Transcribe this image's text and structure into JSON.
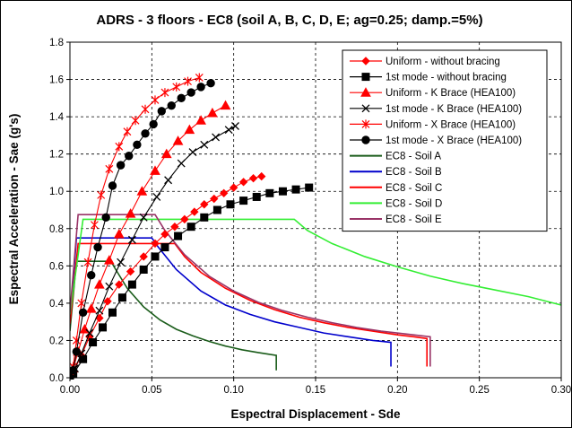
{
  "chart_data": {
    "type": "line",
    "title": "ADRS - 3 floors - EC8 (soil A, B, C, D, E; ag=0.25; damp.=5%)",
    "xlabel": "Espectral Displacement - Sde",
    "ylabel": "Espectral Acceleration - Sae (g's)",
    "xlim": [
      0,
      0.3
    ],
    "ylim": [
      0,
      1.8
    ],
    "xticks": [
      "0.00",
      "0.05",
      "0.10",
      "0.15",
      "0.20",
      "0.25",
      "0.30"
    ],
    "yticks": [
      "0.0",
      "0.2",
      "0.4",
      "0.6",
      "0.8",
      "1.0",
      "1.2",
      "1.4",
      "1.6",
      "1.8"
    ],
    "grid": "dashed",
    "legend_position": "top-right",
    "series": [
      {
        "name": "Uniform - without bracing",
        "color": "#ff0000",
        "marker": "diamond",
        "points": [
          [
            0,
            0
          ],
          [
            0.002,
            0.03
          ],
          [
            0.007,
            0.12
          ],
          [
            0.012,
            0.22
          ],
          [
            0.018,
            0.32
          ],
          [
            0.023,
            0.41
          ],
          [
            0.03,
            0.5
          ],
          [
            0.037,
            0.57
          ],
          [
            0.045,
            0.65
          ],
          [
            0.052,
            0.72
          ],
          [
            0.058,
            0.77
          ],
          [
            0.064,
            0.81
          ],
          [
            0.07,
            0.85
          ],
          [
            0.076,
            0.89
          ],
          [
            0.082,
            0.93
          ],
          [
            0.088,
            0.96
          ],
          [
            0.094,
            0.99
          ],
          [
            0.1,
            1.02
          ],
          [
            0.106,
            1.05
          ],
          [
            0.112,
            1.07
          ],
          [
            0.117,
            1.08
          ]
        ]
      },
      {
        "name": "1st mode - without bracing",
        "color": "#000000",
        "marker": "square",
        "points": [
          [
            0,
            0
          ],
          [
            0.002,
            0.02
          ],
          [
            0.008,
            0.1
          ],
          [
            0.014,
            0.19
          ],
          [
            0.02,
            0.27
          ],
          [
            0.026,
            0.35
          ],
          [
            0.032,
            0.43
          ],
          [
            0.038,
            0.5
          ],
          [
            0.045,
            0.58
          ],
          [
            0.052,
            0.65
          ],
          [
            0.058,
            0.7
          ],
          [
            0.066,
            0.76
          ],
          [
            0.074,
            0.81
          ],
          [
            0.082,
            0.86
          ],
          [
            0.09,
            0.9
          ],
          [
            0.098,
            0.93
          ],
          [
            0.106,
            0.95
          ],
          [
            0.114,
            0.97
          ],
          [
            0.122,
            0.99
          ],
          [
            0.13,
            1.0
          ],
          [
            0.138,
            1.01
          ],
          [
            0.146,
            1.02
          ]
        ]
      },
      {
        "name": "Uniform - K Brace (HEA100)",
        "color": "#ff0000",
        "marker": "triangle",
        "points": [
          [
            0,
            0
          ],
          [
            0.002,
            0.05
          ],
          [
            0.005,
            0.14
          ],
          [
            0.009,
            0.26
          ],
          [
            0.013,
            0.37
          ],
          [
            0.018,
            0.5
          ],
          [
            0.024,
            0.63
          ],
          [
            0.03,
            0.77
          ],
          [
            0.037,
            0.88
          ],
          [
            0.044,
            1.0
          ],
          [
            0.052,
            1.11
          ],
          [
            0.059,
            1.2
          ],
          [
            0.066,
            1.27
          ],
          [
            0.073,
            1.33
          ],
          [
            0.08,
            1.38
          ],
          [
            0.087,
            1.42
          ],
          [
            0.095,
            1.46
          ]
        ]
      },
      {
        "name": "1st mode - K Brace (HEA100)",
        "color": "#000000",
        "marker": "x",
        "points": [
          [
            0,
            0
          ],
          [
            0.003,
            0.05
          ],
          [
            0.007,
            0.13
          ],
          [
            0.012,
            0.24
          ],
          [
            0.018,
            0.36
          ],
          [
            0.024,
            0.49
          ],
          [
            0.031,
            0.62
          ],
          [
            0.038,
            0.74
          ],
          [
            0.045,
            0.86
          ],
          [
            0.053,
            0.97
          ],
          [
            0.06,
            1.06
          ],
          [
            0.068,
            1.15
          ],
          [
            0.075,
            1.21
          ],
          [
            0.082,
            1.25
          ],
          [
            0.089,
            1.29
          ],
          [
            0.097,
            1.33
          ],
          [
            0.101,
            1.35
          ]
        ]
      },
      {
        "name": "Uniform - X Brace (HEA100)",
        "color": "#ff0000",
        "marker": "star",
        "points": [
          [
            0,
            0
          ],
          [
            0.002,
            0.06
          ],
          [
            0.004,
            0.2
          ],
          [
            0.007,
            0.4
          ],
          [
            0.011,
            0.62
          ],
          [
            0.015,
            0.82
          ],
          [
            0.019,
            0.98
          ],
          [
            0.024,
            1.12
          ],
          [
            0.03,
            1.24
          ],
          [
            0.035,
            1.32
          ],
          [
            0.04,
            1.38
          ],
          [
            0.046,
            1.44
          ],
          [
            0.052,
            1.49
          ],
          [
            0.058,
            1.53
          ],
          [
            0.065,
            1.56
          ],
          [
            0.072,
            1.59
          ],
          [
            0.079,
            1.61
          ]
        ]
      },
      {
        "name": "1st mode - X Brace (HEA100)",
        "color": "#000000",
        "marker": "circle",
        "points": [
          [
            0,
            0
          ],
          [
            0.002,
            0.04
          ],
          [
            0.004,
            0.14
          ],
          [
            0.008,
            0.35
          ],
          [
            0.013,
            0.55
          ],
          [
            0.017,
            0.7
          ],
          [
            0.022,
            0.86
          ],
          [
            0.026,
            1.03
          ],
          [
            0.031,
            1.14
          ],
          [
            0.036,
            1.19
          ],
          [
            0.041,
            1.25
          ],
          [
            0.046,
            1.31
          ],
          [
            0.051,
            1.36
          ],
          [
            0.056,
            1.43
          ],
          [
            0.062,
            1.46
          ],
          [
            0.068,
            1.5
          ],
          [
            0.074,
            1.53
          ],
          [
            0.08,
            1.56
          ],
          [
            0.086,
            1.58
          ]
        ]
      },
      {
        "name": "EC8 - Soil A",
        "color": "#1a5c1a",
        "marker": "none",
        "points": [
          [
            0,
            0.25
          ],
          [
            0.004,
            0.625
          ],
          [
            0.025,
            0.625
          ],
          [
            0.028,
            0.58
          ],
          [
            0.035,
            0.48
          ],
          [
            0.045,
            0.38
          ],
          [
            0.055,
            0.31
          ],
          [
            0.065,
            0.26
          ],
          [
            0.075,
            0.225
          ],
          [
            0.085,
            0.195
          ],
          [
            0.095,
            0.17
          ],
          [
            0.105,
            0.15
          ],
          [
            0.115,
            0.135
          ],
          [
            0.126,
            0.12
          ],
          [
            0.126,
            0.04
          ]
        ]
      },
      {
        "name": "EC8 - Soil B",
        "color": "#0000cc",
        "marker": "none",
        "points": [
          [
            0,
            0.3
          ],
          [
            0.004,
            0.75
          ],
          [
            0.05,
            0.75
          ],
          [
            0.054,
            0.7
          ],
          [
            0.065,
            0.58
          ],
          [
            0.08,
            0.465
          ],
          [
            0.095,
            0.39
          ],
          [
            0.11,
            0.34
          ],
          [
            0.125,
            0.3
          ],
          [
            0.14,
            0.27
          ],
          [
            0.155,
            0.24
          ],
          [
            0.17,
            0.22
          ],
          [
            0.185,
            0.2
          ],
          [
            0.196,
            0.19
          ],
          [
            0.196,
            0.06
          ]
        ]
      },
      {
        "name": "EC8 - Soil C",
        "color": "#ff0000",
        "marker": "none",
        "points": [
          [
            0,
            0.29
          ],
          [
            0.005,
            0.72
          ],
          [
            0.064,
            0.72
          ],
          [
            0.07,
            0.65
          ],
          [
            0.08,
            0.565
          ],
          [
            0.095,
            0.48
          ],
          [
            0.11,
            0.415
          ],
          [
            0.125,
            0.365
          ],
          [
            0.14,
            0.325
          ],
          [
            0.155,
            0.295
          ],
          [
            0.17,
            0.27
          ],
          [
            0.185,
            0.25
          ],
          [
            0.2,
            0.23
          ],
          [
            0.21,
            0.22
          ],
          [
            0.218,
            0.21
          ],
          [
            0.218,
            0.06
          ]
        ]
      },
      {
        "name": "EC8 - Soil D",
        "color": "#33ee33",
        "marker": "none",
        "points": [
          [
            0,
            0.34
          ],
          [
            0.008,
            0.85
          ],
          [
            0.137,
            0.85
          ],
          [
            0.145,
            0.79
          ],
          [
            0.16,
            0.72
          ],
          [
            0.18,
            0.65
          ],
          [
            0.2,
            0.595
          ],
          [
            0.22,
            0.545
          ],
          [
            0.24,
            0.505
          ],
          [
            0.26,
            0.47
          ],
          [
            0.28,
            0.435
          ],
          [
            0.3,
            0.39
          ]
        ]
      },
      {
        "name": "EC8 - Soil E",
        "color": "#993366",
        "marker": "none",
        "points": [
          [
            0,
            0.35
          ],
          [
            0.005,
            0.875
          ],
          [
            0.052,
            0.875
          ],
          [
            0.058,
            0.79
          ],
          [
            0.07,
            0.66
          ],
          [
            0.085,
            0.545
          ],
          [
            0.1,
            0.465
          ],
          [
            0.115,
            0.405
          ],
          [
            0.13,
            0.36
          ],
          [
            0.145,
            0.325
          ],
          [
            0.16,
            0.295
          ],
          [
            0.175,
            0.27
          ],
          [
            0.19,
            0.25
          ],
          [
            0.205,
            0.235
          ],
          [
            0.22,
            0.22
          ],
          [
            0.22,
            0.06
          ]
        ]
      }
    ]
  }
}
